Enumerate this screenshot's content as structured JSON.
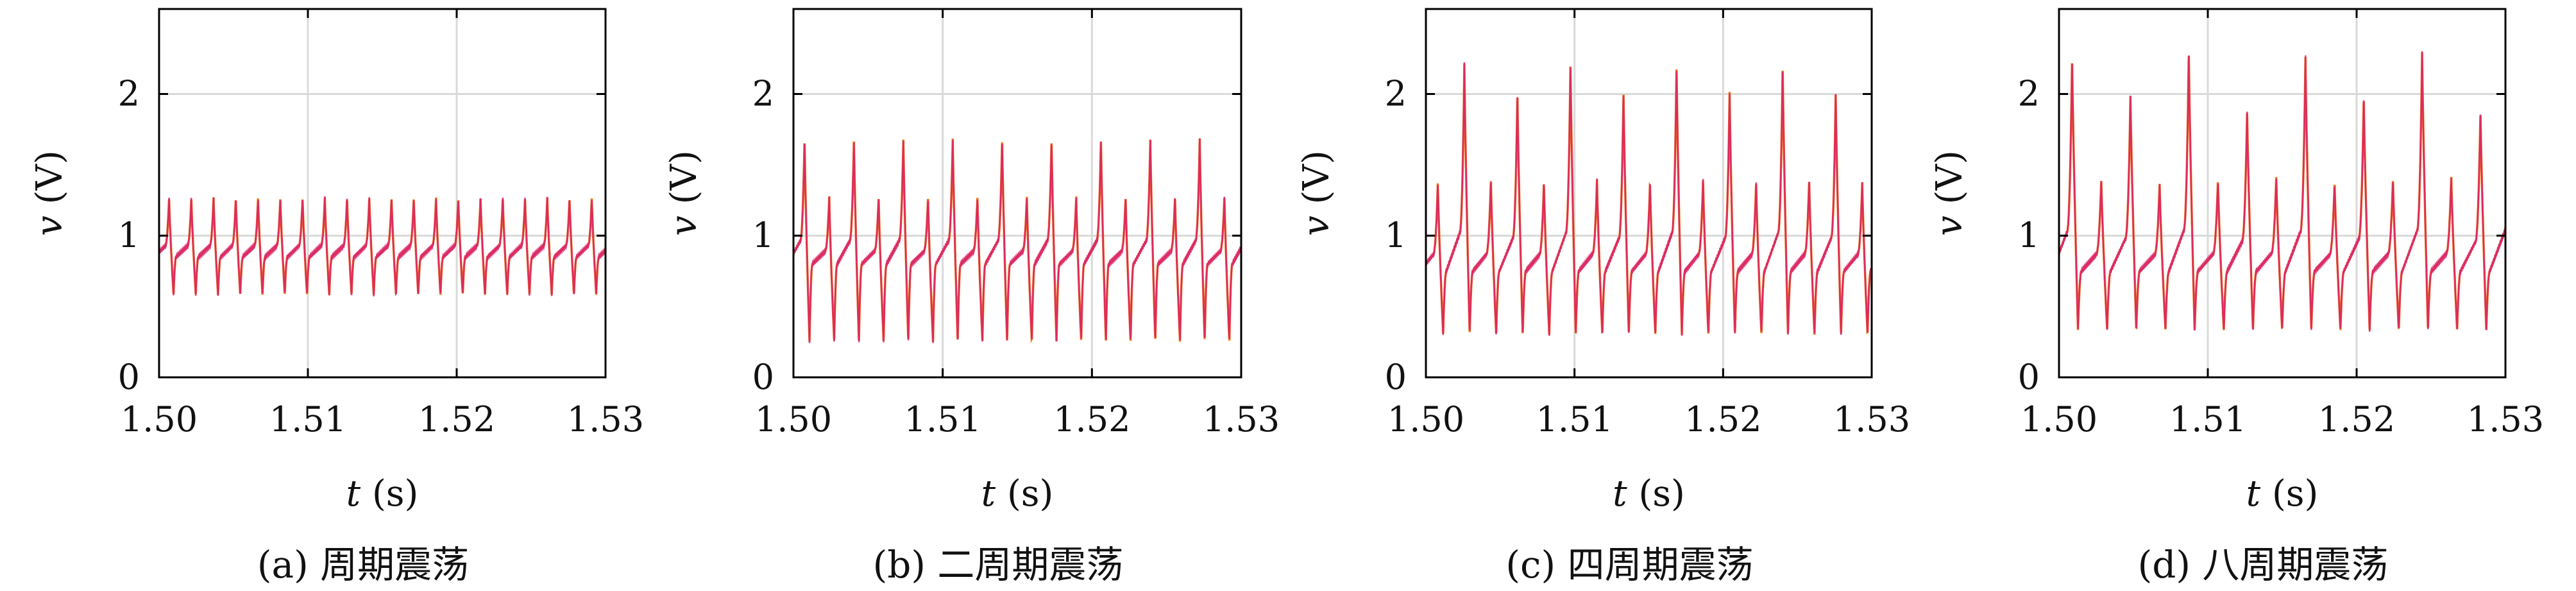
{
  "chart_data": [
    {
      "type": "line",
      "caption": "(a) 周期震荡",
      "xlabel": "t (s)",
      "ylabel": "v (V)",
      "xlim": [
        1.5,
        1.53
      ],
      "ylim": [
        0,
        2.6
      ],
      "xticks": [
        1.5,
        1.51,
        1.52,
        1.53
      ],
      "xtick_labels": [
        "1.50",
        "1.51",
        "1.52",
        "1.53"
      ],
      "yticks": [
        0,
        1,
        2
      ],
      "ytick_labels": [
        "0",
        "1",
        "2"
      ],
      "grid": true,
      "colors": [
        "#f07a1a",
        "#d81e6a"
      ],
      "waveform": {
        "period_s": 0.001495,
        "peaks": [
          1.27
        ],
        "trough": 0.58,
        "sub": 0.85
      }
    },
    {
      "type": "line",
      "caption": "(b) 二周期震荡",
      "xlabel": "t (s)",
      "ylabel": "v (V)",
      "xlim": [
        1.5,
        1.53
      ],
      "ylim": [
        0,
        2.6
      ],
      "xticks": [
        1.5,
        1.51,
        1.52,
        1.53
      ],
      "xtick_labels": [
        "1.50",
        "1.51",
        "1.52",
        "1.53"
      ],
      "yticks": [
        0,
        1,
        2
      ],
      "ytick_labels": [
        "0",
        "1",
        "2"
      ],
      "grid": true,
      "colors": [
        "#f07a1a",
        "#d81e6a"
      ],
      "waveform": {
        "period_s": 0.001655,
        "peaks": [
          1.69,
          1.28
        ],
        "trough": 0.25,
        "sub": 0.8
      }
    },
    {
      "type": "line",
      "caption": "(c) 四周期震荡",
      "xlabel": "t (s)",
      "ylabel": "v (V)",
      "xlim": [
        1.5,
        1.53
      ],
      "ylim": [
        0,
        2.6
      ],
      "xticks": [
        1.5,
        1.51,
        1.52,
        1.53
      ],
      "xtick_labels": [
        "1.50",
        "1.51",
        "1.52",
        "1.53"
      ],
      "yticks": [
        0,
        1,
        2
      ],
      "ytick_labels": [
        "0",
        "1",
        "2"
      ],
      "grid": true,
      "colors": [
        "#f07a1a",
        "#d81e6a"
      ],
      "waveform": {
        "period_s": 0.001785,
        "peaks": [
          1.38,
          2.22,
          1.4,
          2.02
        ],
        "trough": 0.3,
        "sub": 0.75
      }
    },
    {
      "type": "line",
      "caption": "(d) 八周期震荡",
      "xlabel": "t (s)",
      "ylabel": "v (V)",
      "xlim": [
        1.5,
        1.53
      ],
      "ylim": [
        0,
        2.6
      ],
      "xticks": [
        1.5,
        1.51,
        1.52,
        1.53
      ],
      "xtick_labels": [
        "1.50",
        "1.51",
        "1.52",
        "1.53"
      ],
      "yticks": [
        0,
        1,
        2
      ],
      "ytick_labels": [
        "0",
        "1",
        "2"
      ],
      "grid": true,
      "colors": [
        "#f07a1a",
        "#d81e6a"
      ],
      "waveform": {
        "period_s": 0.00196,
        "peaks": [
          2.27,
          1.4,
          2.0,
          1.37,
          2.31,
          1.4,
          1.89,
          1.42,
          2.27,
          1.38,
          1.99,
          1.4,
          2.31,
          1.42,
          1.88
        ],
        "trough": 0.33,
        "sub": 0.75
      }
    }
  ]
}
